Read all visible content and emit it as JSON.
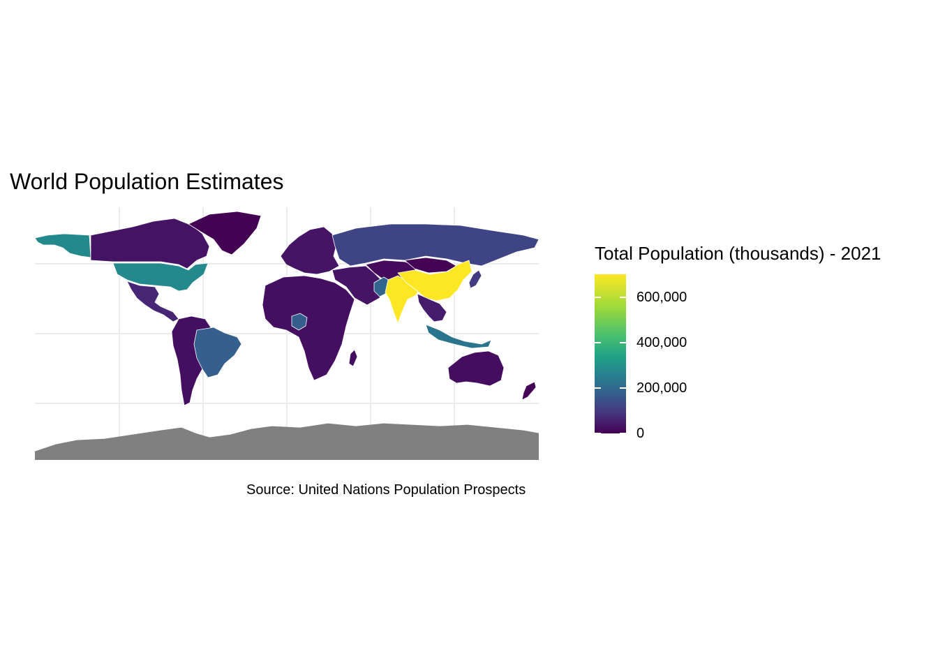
{
  "title": "World Population Estimates",
  "caption": "Source: United Nations Population Prospects",
  "legend": {
    "title": "Total Population (thousands) - 2021",
    "min": 0,
    "max": 700000,
    "ticks": [
      {
        "value": 0,
        "label": "0"
      },
      {
        "value": 200000,
        "label": "200,000"
      },
      {
        "value": 400000,
        "label": "400,000"
      },
      {
        "value": 600000,
        "label": "600,000"
      }
    ],
    "palette": "viridis"
  },
  "colors": {
    "low": "#440154",
    "mid": "#21908c",
    "high": "#fde725",
    "no_data": "#808080",
    "gridline": "#ebebeb",
    "border": "#ffffff"
  },
  "regions": [
    {
      "id": "canada",
      "value": 38000
    },
    {
      "id": "alaska",
      "value": 330000
    },
    {
      "id": "usa",
      "value": 330000
    },
    {
      "id": "greenland",
      "value": 56
    },
    {
      "id": "mexico-central-america",
      "value": 80000
    },
    {
      "id": "south-america",
      "value": 30000
    },
    {
      "id": "brazil",
      "value": 214000
    },
    {
      "id": "europe",
      "value": 40000
    },
    {
      "id": "russia",
      "value": 145000
    },
    {
      "id": "africa",
      "value": 30000
    },
    {
      "id": "nigeria",
      "value": 213000
    },
    {
      "id": "middle-east",
      "value": 40000
    },
    {
      "id": "central-asia",
      "value": 20000
    },
    {
      "id": "mongolia",
      "value": 3300
    },
    {
      "id": "pakistan",
      "value": 231000
    },
    {
      "id": "india",
      "value": 700000
    },
    {
      "id": "china",
      "value": 700000
    },
    {
      "id": "southeast-asia",
      "value": 60000
    },
    {
      "id": "indonesia",
      "value": 274000
    },
    {
      "id": "japan",
      "value": 125000
    },
    {
      "id": "australia",
      "value": 26000
    },
    {
      "id": "new-zealand",
      "value": 5000
    },
    {
      "id": "madagascar",
      "value": 28000
    },
    {
      "id": "antarctica",
      "value": null
    }
  ]
}
